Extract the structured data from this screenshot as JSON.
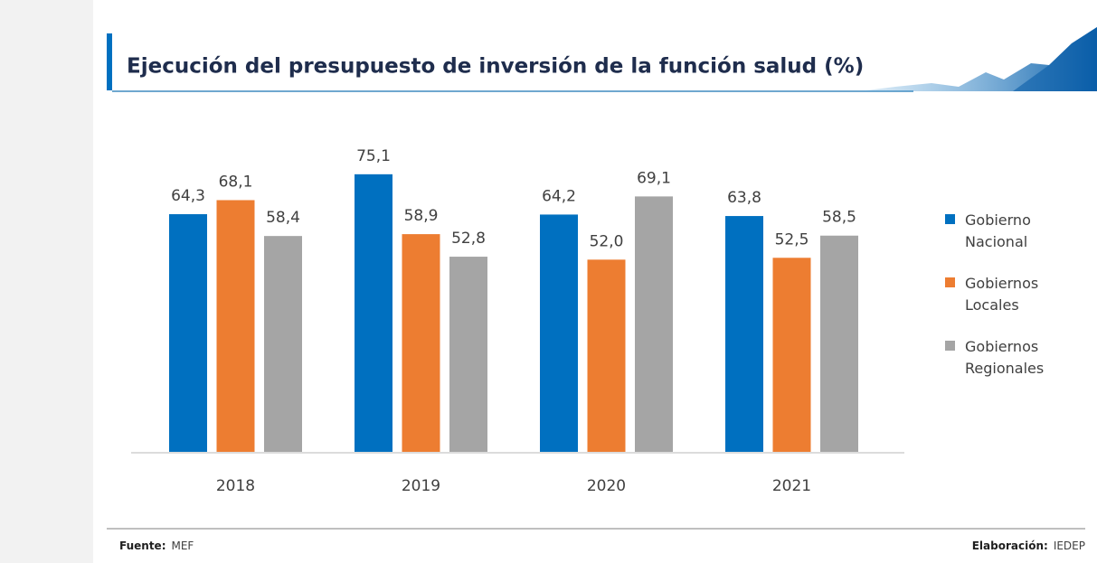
{
  "chart_data": {
    "type": "bar",
    "title": "Ejecución del presupuesto de inversión de la función salud (%)",
    "categories": [
      "2018",
      "2019",
      "2020",
      "2021"
    ],
    "series": [
      {
        "name": "Gobierno Nacional",
        "color": "#0070c0",
        "values": [
          64.3,
          75.1,
          64.2,
          63.8
        ],
        "value_labels": [
          "64,3",
          "75,1",
          "64,2",
          "63,8"
        ]
      },
      {
        "name": "Gobiernos Locales",
        "color": "#ed7d31",
        "values": [
          68.1,
          58.9,
          52.0,
          52.5
        ],
        "value_labels": [
          "68,1",
          "58,9",
          "52,0",
          "52,5"
        ]
      },
      {
        "name": "Gobiernos Regionales",
        "color": "#a5a5a5",
        "values": [
          58.4,
          52.8,
          69.1,
          58.5
        ],
        "value_labels": [
          "58,4",
          "52,8",
          "69,1",
          "58,5"
        ]
      }
    ],
    "legend": "right"
  },
  "footer": {
    "source_label": "Fuente:",
    "source": "MEF",
    "credit_label": "Elaboración:",
    "credit": "IEDEP"
  }
}
